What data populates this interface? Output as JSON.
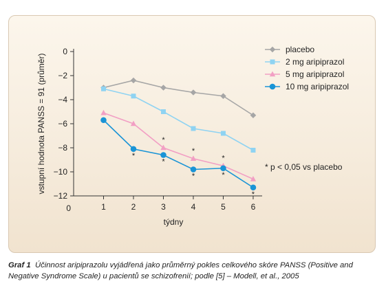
{
  "chart_data": {
    "type": "line",
    "xlabel": "týdny",
    "ylabel": "vstupní hodnota PANSS = 91 (průměr)",
    "x": [
      1,
      2,
      3,
      4,
      5,
      6
    ],
    "x_ticks": [
      "0",
      "1",
      "2",
      "3",
      "4",
      "5",
      "6"
    ],
    "y_ticks": [
      "0",
      "-2",
      "-4",
      "-6",
      "-8",
      "-10",
      "-12"
    ],
    "xlim": [
      0,
      6.3
    ],
    "ylim": [
      -12,
      0
    ],
    "grid": false,
    "legend_position": "top-right",
    "series": [
      {
        "name": "placebo",
        "color": "#a6a6a6",
        "marker": "diamond",
        "values": [
          -3.0,
          -2.4,
          -3.0,
          -3.4,
          -3.7,
          -5.3
        ]
      },
      {
        "name": "2 mg aripiprazol",
        "color": "#8fd3f2",
        "marker": "square",
        "values": [
          -3.1,
          -3.7,
          -5.0,
          -6.4,
          -6.8,
          -8.2
        ]
      },
      {
        "name": "5 mg aripiprazol",
        "color": "#f29fc4",
        "marker": "triangle",
        "values": [
          -5.1,
          -6.0,
          -8.0,
          -8.9,
          -9.5,
          -10.6
        ]
      },
      {
        "name": "10 mg aripiprazol",
        "color": "#1a94d6",
        "marker": "circle",
        "values": [
          -5.7,
          -8.1,
          -8.6,
          -9.8,
          -9.7,
          -11.3
        ]
      }
    ],
    "significance": [
      {
        "series": 2,
        "x": 3,
        "label": "*"
      },
      {
        "series": 2,
        "x": 4,
        "label": "*"
      },
      {
        "series": 2,
        "x": 5,
        "label": "*"
      },
      {
        "series": 3,
        "x": 2,
        "label": "*"
      },
      {
        "series": 3,
        "x": 3,
        "label": "*"
      },
      {
        "series": 3,
        "x": 4,
        "label": "*"
      },
      {
        "series": 3,
        "x": 5,
        "label": "*"
      },
      {
        "series": 3,
        "x": 6,
        "label": "*"
      }
    ],
    "annotation": "* p < 0,05 vs placebo"
  },
  "caption": {
    "label": "Graf 1",
    "text": "Účinnost aripiprazolu vyjádřená jako průměrný pokles celkového skóre PANSS (Positive and Negative Syndrome Scale) u pacientů se schizofrenií; podle [5] – Modell, et al., 2005"
  }
}
